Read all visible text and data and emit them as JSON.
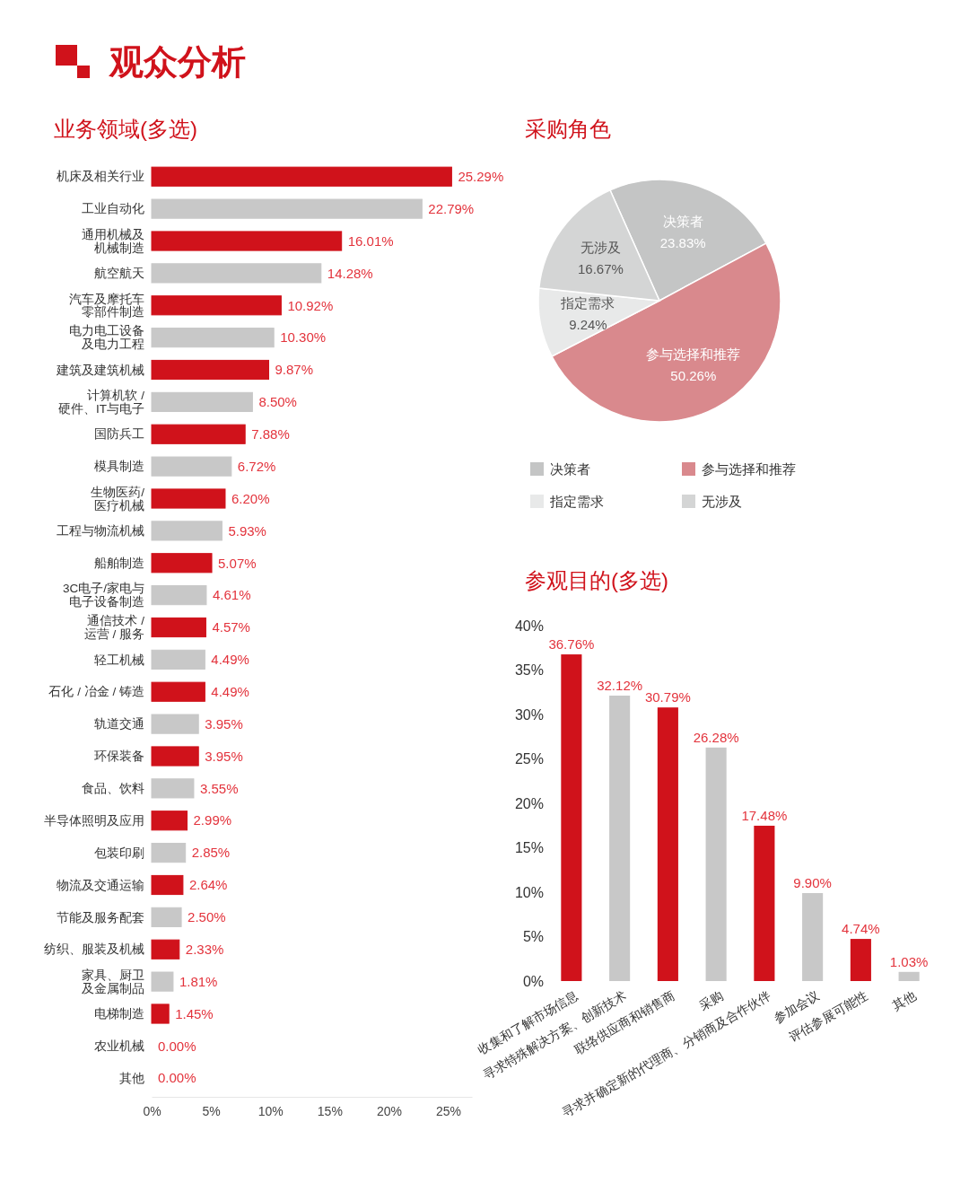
{
  "chart_data": [
    {
      "type": "bar",
      "orientation": "horizontal",
      "title": "观众分析",
      "subtitle": "业务领域(多选)",
      "categories": [
        "机床及相关行业",
        "工业自动化",
        "通用机械及机械制造",
        "航空航天",
        "汽车及摩托车零部件制造",
        "电力电工设备及电力工程",
        "建筑及建筑机械",
        "计算机软 /硬件、IT与电子",
        "国防兵工",
        "模具制造",
        "生物医药/医疗机械",
        "工程与物流机械",
        "船舶制造",
        "3C电子/家电与电子设备制造",
        "通信技术 /运营 / 服务",
        "轻工机械",
        "石化 / 冶金 / 铸造",
        "轨道交通",
        "环保装备",
        "食品、饮料",
        "半导体照明及应用",
        "包装印刷",
        "物流及交通运输",
        "节能及服务配套",
        "纺织、服装及机械",
        "家具、厨卫及金属制品",
        "电梯制造",
        "农业机械",
        "其他"
      ],
      "values": [
        25.29,
        22.79,
        16.01,
        14.28,
        10.92,
        10.3,
        9.87,
        8.5,
        7.88,
        6.72,
        6.2,
        5.93,
        5.07,
        4.61,
        4.57,
        4.49,
        4.49,
        3.95,
        3.95,
        3.55,
        2.99,
        2.85,
        2.64,
        2.5,
        2.33,
        1.81,
        1.45,
        0.0,
        0.0
      ],
      "value_labels": [
        "25.29%",
        "22.79%",
        "16.01%",
        "14.28%",
        "10.92%",
        "10.30%",
        "9.87%",
        "8.50%",
        "7.88%",
        "6.72%",
        "6.20%",
        "5.93%",
        "5.07%",
        "4.61%",
        "4.57%",
        "4.49%",
        "4.49%",
        "3.95%",
        "3.95%",
        "3.55%",
        "2.99%",
        "2.85%",
        "2.64%",
        "2.50%",
        "2.33%",
        "1.81%",
        "1.45%",
        "0.00%",
        "0.00%"
      ],
      "colors": [
        "#d0121b",
        "#c8c8c8",
        "#d0121b",
        "#c8c8c8",
        "#d0121b",
        "#c8c8c8",
        "#d0121b",
        "#c8c8c8",
        "#d0121b",
        "#c8c8c8",
        "#d0121b",
        "#c8c8c8",
        "#d0121b",
        "#c8c8c8",
        "#d0121b",
        "#c8c8c8",
        "#d0121b",
        "#c8c8c8",
        "#d0121b",
        "#c8c8c8",
        "#d0121b",
        "#c8c8c8",
        "#d0121b",
        "#c8c8c8",
        "#d0121b",
        "#c8c8c8",
        "#d0121b",
        "#e4e4e4",
        "#d0121b"
      ],
      "xlim": [
        0,
        27
      ],
      "xticks": [
        {
          "value": 0,
          "label": "0%"
        },
        {
          "value": 5,
          "label": "5%"
        },
        {
          "value": 10,
          "label": "10%"
        },
        {
          "value": 15,
          "label": "15%"
        },
        {
          "value": 20,
          "label": "20%"
        },
        {
          "value": 25,
          "label": "25%"
        }
      ]
    },
    {
      "type": "pie",
      "title": "采购角色",
      "categories": [
        "决策者",
        "参与选择和推荐",
        "指定需求",
        "无涉及"
      ],
      "values": [
        23.83,
        50.26,
        9.24,
        16.67
      ],
      "value_labels": [
        "23.83%",
        "50.26%",
        "9.24%",
        "16.67%"
      ],
      "colors": [
        "#c4c5c5",
        "#d9898d",
        "#e8e9e9",
        "#d4d5d5"
      ],
      "legend": "bottom"
    },
    {
      "type": "bar",
      "title": "参观目的(多选)",
      "categories": [
        "收集和了解市场信息",
        "寻求特殊解决方案、创新技术",
        "联络供应商和销售商",
        "采购",
        "寻求并确定新的代理商、分销商及合作伙伴",
        "参加会议",
        "评估参展可能性",
        "其他"
      ],
      "values": [
        36.76,
        32.12,
        30.79,
        26.28,
        17.48,
        9.9,
        4.74,
        1.03
      ],
      "value_labels": [
        "36.76%",
        "32.12%",
        "30.79%",
        "26.28%",
        "17.48%",
        "9.90%",
        "4.74%",
        "1.03%"
      ],
      "colors": [
        "#d0121b",
        "#c8c8c8",
        "#d0121b",
        "#c8c8c8",
        "#d0121b",
        "#c8c8c8",
        "#d0121b",
        "#c8c8c8"
      ],
      "ylim": [
        0,
        40
      ],
      "yticks": [
        {
          "value": 0,
          "label": "0%"
        },
        {
          "value": 5,
          "label": "5%"
        },
        {
          "value": 10,
          "label": "10%"
        },
        {
          "value": 15,
          "label": "15%"
        },
        {
          "value": 20,
          "label": "20%"
        },
        {
          "value": 25,
          "label": "25%"
        },
        {
          "value": 30,
          "label": "30%"
        },
        {
          "value": 35,
          "label": "35%"
        },
        {
          "value": 40,
          "label": "40%"
        }
      ]
    }
  ]
}
